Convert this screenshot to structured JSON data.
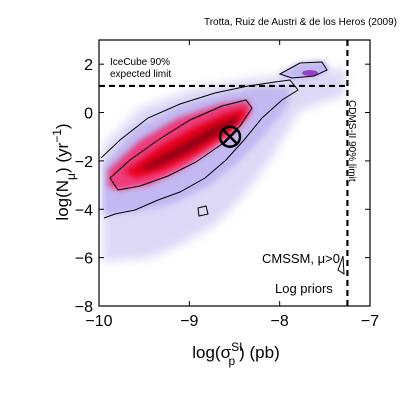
{
  "chart_data": {
    "type": "heatmap",
    "title": "Trotta, Ruiz de Austri & de los Heros (2009)",
    "xlabel_main": "log(σ",
    "xlabel_sup": "SI",
    "xlabel_sub": "p",
    "xlabel_tail": ") (pb)",
    "ylabel_main": "log(N",
    "ylabel_sub": "μ",
    "ylabel_tail": ") (yr",
    "ylabel_sup": "−1",
    "ylabel_close": ")",
    "xlim": [
      -10,
      -7
    ],
    "ylim": [
      -8,
      3
    ],
    "x_ticks": [
      -10,
      -9,
      -8,
      -7
    ],
    "x_tick_labels": [
      "−10",
      "−9",
      "−8",
      "−7"
    ],
    "y_ticks": [
      -8,
      -6,
      -4,
      -2,
      0,
      2
    ],
    "y_tick_labels": [
      "−8",
      "−6",
      "−4",
      "−2",
      "0",
      "2"
    ],
    "icecube_limit_y": 1.1,
    "icecube_label_line1": "IceCube 90%",
    "icecube_label_line2": "expected limit",
    "cdms_limit_x": -7.25,
    "cdms_label": "CDMS-II 90% limit",
    "best_fit": {
      "x": -8.55,
      "y": -1.0
    },
    "model_label": "CMSSM, μ>0",
    "prior_label": "Log priors",
    "colors": {
      "outer": "#ddd8f5",
      "low": "#c2b8f2",
      "mid": "#ee3b7a",
      "high": "#e8001e",
      "core": "#4a0010",
      "contour": "#000000"
    }
  }
}
